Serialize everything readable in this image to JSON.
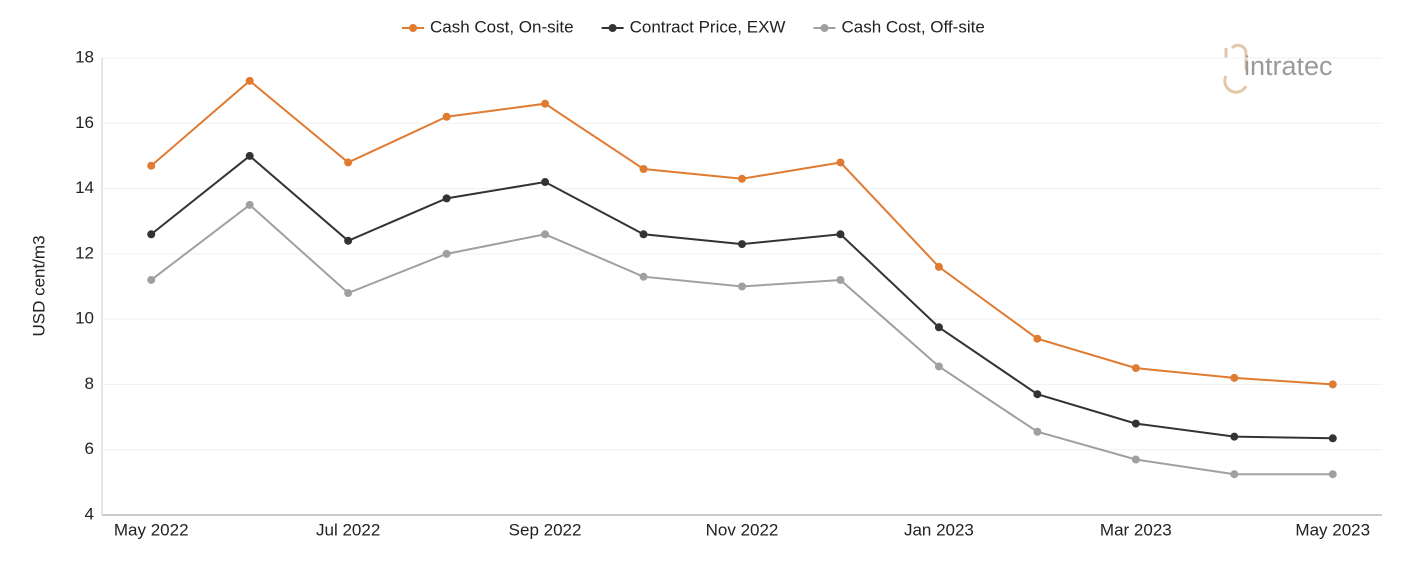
{
  "chart_data": {
    "type": "line",
    "y_label": "USD cent/m3",
    "logo": "intratec",
    "categories": [
      "May 2022",
      null,
      "Jul 2022",
      null,
      "Sep 2022",
      null,
      "Nov 2022",
      null,
      "Jan 2023",
      null,
      "Mar 2023",
      null,
      "May 2023"
    ],
    "series": [
      {
        "name": "Cash Cost, On-site",
        "color": "#e07b32",
        "values": [
          14.7,
          17.3,
          14.8,
          16.2,
          16.6,
          14.6,
          14.3,
          14.8,
          11.6,
          9.4,
          8.5,
          8.2,
          8.0
        ]
      },
      {
        "name": "Contract Price, EXW",
        "color": "#333333",
        "values": [
          12.6,
          15.0,
          12.4,
          13.7,
          14.2,
          12.6,
          12.3,
          12.6,
          9.75,
          7.7,
          6.8,
          6.4,
          6.35
        ]
      },
      {
        "name": "Cash Cost, Off-site",
        "color": "#a0a0a0",
        "values": [
          11.2,
          13.5,
          10.8,
          12.0,
          12.6,
          11.3,
          11.0,
          11.2,
          8.55,
          6.55,
          5.7,
          5.25,
          5.25
        ]
      }
    ],
    "ylim": [
      4,
      18
    ],
    "yticks": [
      4,
      6,
      8,
      10,
      12,
      14,
      16,
      18
    ],
    "grid": true,
    "legend": "top"
  }
}
